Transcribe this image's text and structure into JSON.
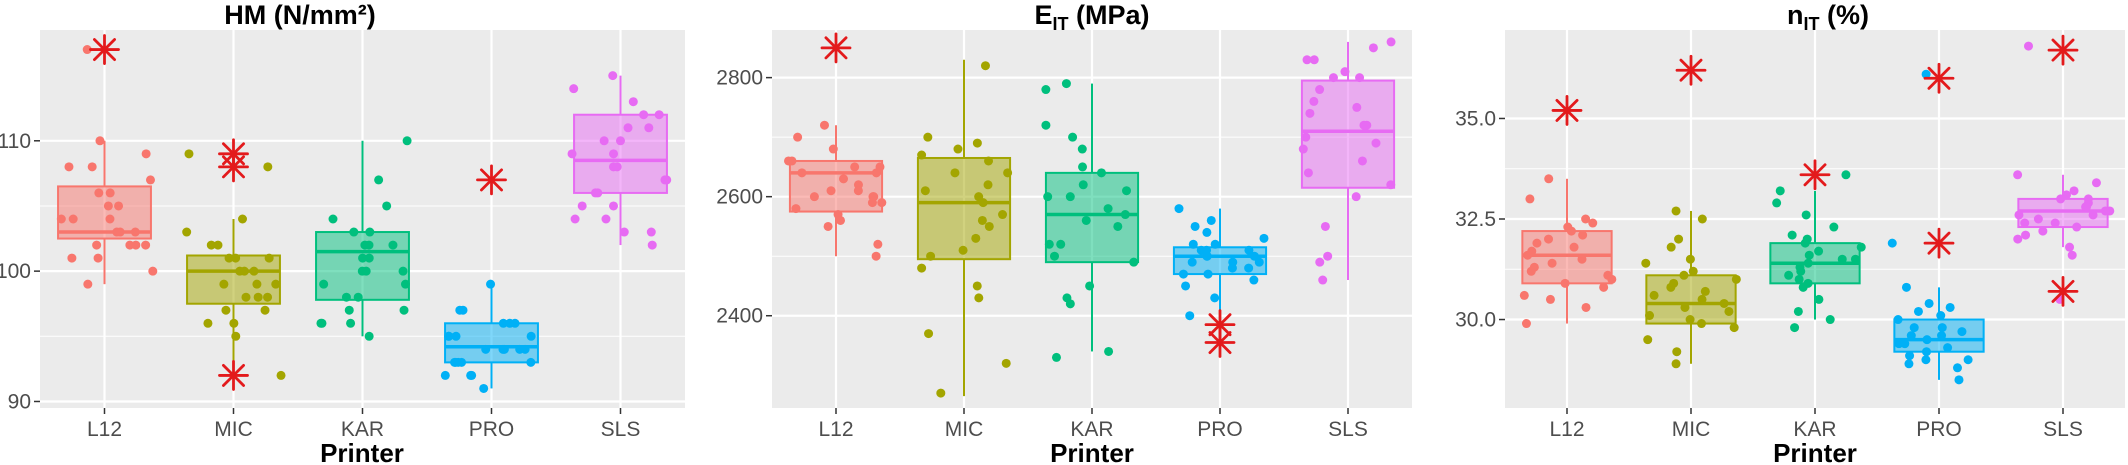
{
  "figure": {
    "x_axis_label": "Printer",
    "star_color": "#e31a1c"
  },
  "colors": {
    "L12": "#F8766D",
    "MIC": "#A3A500",
    "KAR": "#00BF7D",
    "PRO": "#00B0F6",
    "SLS": "#E76BF3"
  },
  "chart_data": [
    {
      "type": "box",
      "title": "HM (N/mm²)",
      "xlabel": "Printer",
      "categories": [
        "L12",
        "MIC",
        "KAR",
        "PRO",
        "SLS"
      ],
      "yticks": [
        90,
        100,
        110
      ],
      "ytick_labels": [
        "90",
        "100",
        "110"
      ],
      "ylim": [
        89.5,
        118.5
      ],
      "grid": true,
      "boxes": [
        {
          "q1": 102.5,
          "median": 103,
          "q3": 106.5,
          "whisker_low": 99,
          "whisker_high": 110
        },
        {
          "q1": 97.5,
          "median": 100,
          "q3": 101.2,
          "whisker_low": 93,
          "whisker_high": 104
        },
        {
          "q1": 97.8,
          "median": 101.5,
          "q3": 103,
          "whisker_low": 95,
          "whisker_high": 110
        },
        {
          "q1": 93,
          "median": 94.2,
          "q3": 96,
          "whisker_low": 91,
          "whisker_high": 99
        },
        {
          "q1": 106,
          "median": 108.5,
          "q3": 112,
          "whisker_low": 102,
          "whisker_high": 115
        }
      ],
      "points": [
        [
          102,
          104,
          106,
          108,
          110,
          103,
          101,
          99,
          105,
          107,
          102,
          104,
          100,
          103,
          106,
          109,
          101,
          105,
          117,
          102,
          104,
          103,
          102,
          108
        ],
        [
          99,
          100,
          101,
          102,
          97,
          98,
          96,
          95,
          101,
          103,
          104,
          100,
          99,
          98,
          102,
          97,
          96,
          92,
          100,
          101,
          108,
          109,
          98,
          99
        ],
        [
          96,
          97,
          98,
          99,
          100,
          101,
          102,
          103,
          95,
          96,
          100,
          102,
          104,
          105,
          107,
          110,
          98,
          97,
          101,
          102,
          100,
          99,
          96,
          103
        ],
        [
          91,
          92,
          93,
          94,
          95,
          96,
          93,
          94,
          95,
          92,
          96,
          94,
          93,
          95,
          97,
          99,
          94,
          93,
          92,
          95,
          96,
          94,
          93,
          97
        ],
        [
          102,
          103,
          104,
          105,
          106,
          107,
          108,
          109,
          110,
          111,
          112,
          113,
          114,
          115,
          104,
          106,
          108,
          110,
          112,
          103,
          105,
          107,
          109,
          111
        ]
      ],
      "stars": [
        [
          117
        ],
        [
          108,
          109,
          92
        ],
        [],
        [
          107
        ],
        []
      ]
    },
    {
      "type": "box",
      "title": "EIT (MPa)",
      "title_main": "E",
      "title_sub": "IT",
      "title_rest": " (MPa)",
      "xlabel": "Printer",
      "categories": [
        "L12",
        "MIC",
        "KAR",
        "PRO",
        "SLS"
      ],
      "yticks": [
        2400,
        2600,
        2800
      ],
      "ytick_labels": [
        "2400",
        "2600",
        "2800"
      ],
      "ylim": [
        2245,
        2880
      ],
      "grid": true,
      "boxes": [
        {
          "q1": 2575,
          "median": 2640,
          "q3": 2660,
          "whisker_low": 2500,
          "whisker_high": 2720
        },
        {
          "q1": 2495,
          "median": 2590,
          "q3": 2665,
          "whisker_low": 2265,
          "whisker_high": 2830
        },
        {
          "q1": 2490,
          "median": 2570,
          "q3": 2640,
          "whisker_low": 2340,
          "whisker_high": 2790
        },
        {
          "q1": 2470,
          "median": 2500,
          "q3": 2515,
          "whisker_low": 2400,
          "whisker_high": 2580
        },
        {
          "q1": 2615,
          "median": 2710,
          "q3": 2795,
          "whisker_low": 2460,
          "whisker_high": 2860
        }
      ],
      "points": [
        [
          2620,
          2650,
          2600,
          2580,
          2640,
          2660,
          2700,
          2720,
          2550,
          2600,
          2500,
          2520,
          2630,
          2610,
          2660,
          2590,
          2640,
          2570,
          2680,
          2600,
          2560,
          2650,
          2610,
          2590
        ],
        [
          2680,
          2690,
          2640,
          2600,
          2560,
          2500,
          2450,
          2430,
          2370,
          2320,
          2270,
          2610,
          2660,
          2700,
          2820,
          2530,
          2480,
          2590,
          2570,
          2620,
          2640,
          2510,
          2550,
          2670
        ],
        [
          2790,
          2780,
          2700,
          2650,
          2620,
          2600,
          2580,
          2560,
          2520,
          2500,
          2450,
          2430,
          2420,
          2340,
          2330,
          2550,
          2610,
          2640,
          2680,
          2720,
          2600,
          2570,
          2520,
          2490
        ],
        [
          2500,
          2480,
          2510,
          2490,
          2530,
          2550,
          2580,
          2460,
          2470,
          2450,
          2520,
          2540,
          2500,
          2490,
          2510,
          2430,
          2400,
          2560,
          2480,
          2500,
          2510,
          2470,
          2490,
          2520
        ],
        [
          2860,
          2850,
          2830,
          2810,
          2800,
          2780,
          2760,
          2740,
          2720,
          2700,
          2680,
          2660,
          2640,
          2620,
          2600,
          2550,
          2500,
          2490,
          2460,
          2830,
          2800,
          2750,
          2720,
          2690
        ]
      ],
      "stars": [
        [
          2850
        ],
        [],
        [],
        [
          2385,
          2355
        ],
        []
      ]
    },
    {
      "type": "box",
      "title": "nIT (%)",
      "title_main": "n",
      "title_sub": "IT",
      "title_rest": " (%)",
      "xlabel": "Printer",
      "categories": [
        "L12",
        "MIC",
        "KAR",
        "PRO",
        "SLS"
      ],
      "yticks": [
        30.0,
        32.5,
        35.0
      ],
      "ytick_labels": [
        "30.0",
        "32.5",
        "35.0"
      ],
      "ylim": [
        27.8,
        37.2
      ],
      "grid": true,
      "boxes": [
        {
          "q1": 30.9,
          "median": 31.6,
          "q3": 32.2,
          "whisker_low": 29.9,
          "whisker_high": 33.5
        },
        {
          "q1": 29.9,
          "median": 30.4,
          "q3": 31.1,
          "whisker_low": 28.9,
          "whisker_high": 32.7
        },
        {
          "q1": 30.9,
          "median": 31.4,
          "q3": 31.9,
          "whisker_low": 30.0,
          "whisker_high": 33.2
        },
        {
          "q1": 29.2,
          "median": 29.5,
          "q3": 30.0,
          "whisker_low": 28.5,
          "whisker_high": 30.8
        },
        {
          "q1": 32.3,
          "median": 32.7,
          "q3": 33.0,
          "whisker_low": 31.8,
          "whisker_high": 33.6
        }
      ],
      "points": [
        [
          31.2,
          31.5,
          31.8,
          32.1,
          32.4,
          30.8,
          30.5,
          31.0,
          32.0,
          33.0,
          33.5,
          30.3,
          29.9,
          31.4,
          31.7,
          32.2,
          31.1,
          30.9,
          32.5,
          31.6,
          30.6,
          31.9,
          31.3,
          32.3
        ],
        [
          30.0,
          30.2,
          30.4,
          30.6,
          30.8,
          31.0,
          31.2,
          31.5,
          31.8,
          32.0,
          32.5,
          32.7,
          29.8,
          29.5,
          29.2,
          28.9,
          30.1,
          30.3,
          30.9,
          31.4,
          29.9,
          30.5,
          31.1,
          30.7
        ],
        [
          31.0,
          31.2,
          31.4,
          31.6,
          31.8,
          32.0,
          32.3,
          32.6,
          32.9,
          33.2,
          33.6,
          30.5,
          30.2,
          30.0,
          29.8,
          31.3,
          31.5,
          31.7,
          30.8,
          31.1,
          30.9,
          31.9,
          32.1,
          31.5
        ],
        [
          29.0,
          29.2,
          29.4,
          29.6,
          29.8,
          30.0,
          30.2,
          30.4,
          30.8,
          28.8,
          28.5,
          28.9,
          29.5,
          29.7,
          29.3,
          30.1,
          29.1,
          31.9,
          36.1,
          29.6,
          29.4,
          30.3,
          29.0,
          29.8
        ],
        [
          32.2,
          32.4,
          32.6,
          32.8,
          33.0,
          33.2,
          33.4,
          33.6,
          32.0,
          31.8,
          31.6,
          32.5,
          32.7,
          32.9,
          33.1,
          32.3,
          32.1,
          32.6,
          30.5,
          36.8,
          32.8,
          33.0,
          32.4,
          32.7
        ]
      ],
      "stars": [
        [
          35.2
        ],
        [
          36.2
        ],
        [
          33.6
        ],
        [
          36.0,
          31.9
        ],
        [
          36.7,
          30.7
        ]
      ]
    }
  ]
}
